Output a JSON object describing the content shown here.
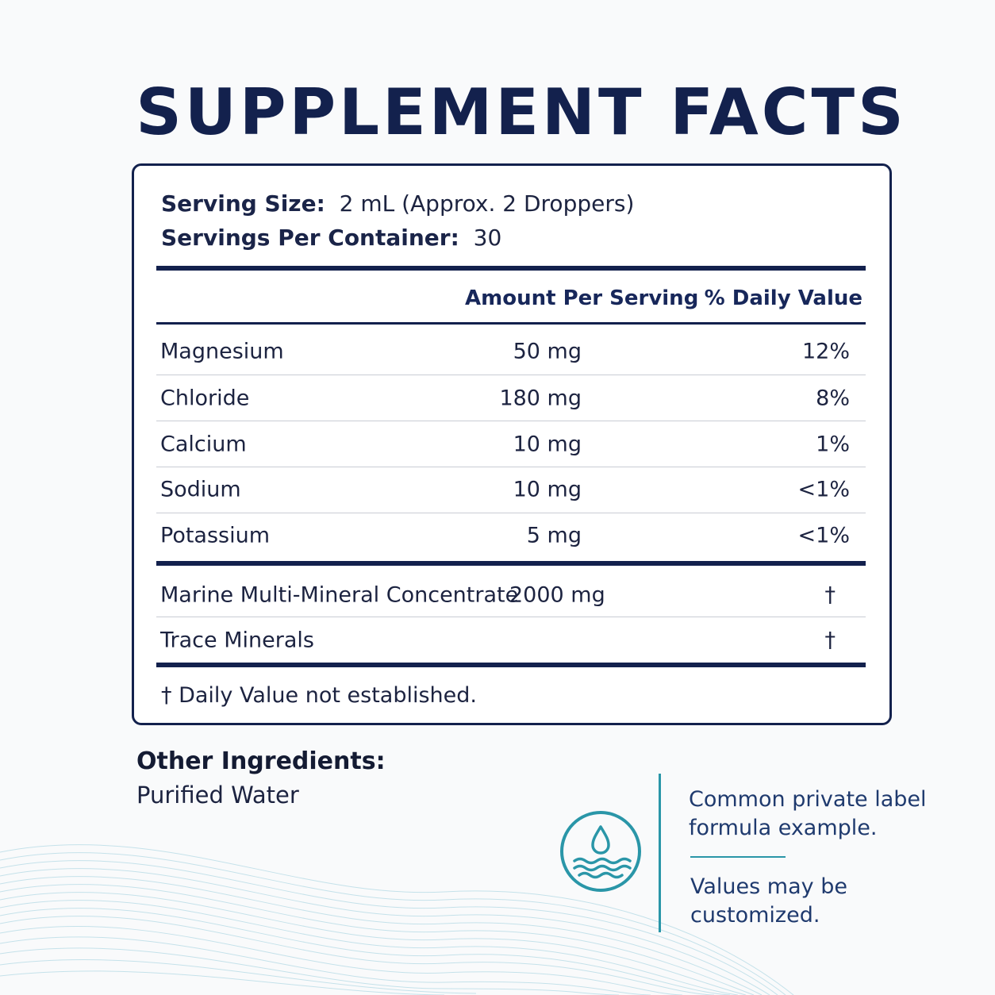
{
  "title": "SUPPLEMENT FACTS",
  "serving": {
    "size_label": "Serving Size:",
    "size_value": "2 mL (Approx. 2 Droppers)",
    "per_container_label": "Servings Per Container:",
    "per_container_value": "30"
  },
  "table": {
    "headers": {
      "amount": "Amount Per Serving",
      "dv": "% Daily Value"
    },
    "rows": [
      {
        "name": "Magnesium",
        "amount": "50 mg",
        "dv": "12%"
      },
      {
        "name": "Chloride",
        "amount": "180 mg",
        "dv": "8%"
      },
      {
        "name": "Calcium",
        "amount": "10 mg",
        "dv": "1%"
      },
      {
        "name": "Sodium",
        "amount": "10 mg",
        "dv": "<1%"
      },
      {
        "name": "Potassium",
        "amount": "5 mg",
        "dv": "<1%"
      }
    ],
    "other_rows": [
      {
        "name": "Marine Multi-Mineral Concentrate",
        "amount": "2000 mg",
        "dv": "†"
      },
      {
        "name": "Trace Minerals",
        "amount": "",
        "dv": "†"
      }
    ],
    "footnote": "† Daily Value not established."
  },
  "other_ingredients": {
    "label": "Other Ingredients:",
    "value": "Purified Water"
  },
  "note": {
    "line1": "Common private label formula example.",
    "line2": "Values may be customized.",
    "icon": "water-drop-waves-icon"
  },
  "colors": {
    "navy": "#13214d",
    "teal": "#2a96a8",
    "wave": "#b8dce6"
  }
}
